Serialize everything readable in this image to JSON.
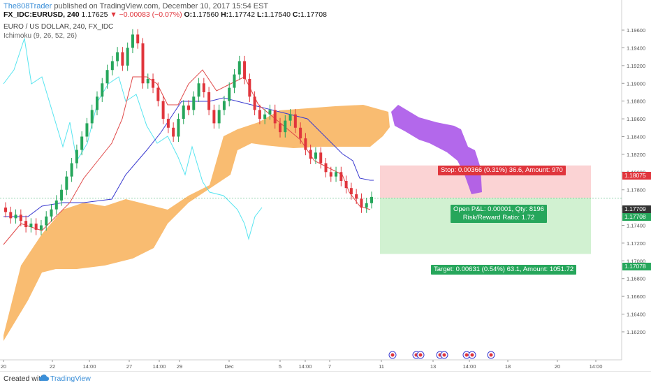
{
  "header": {
    "author": "The808Trader",
    "published": "published on TradingView.com, December 10, 2017 15:54 EST",
    "symbol": "FX_IDC:EURUSD, 240",
    "last": "1.17625",
    "change_arrow": "▼",
    "change": "−0.00083 (−0.07%)",
    "o_label": "O:",
    "o_value": "1.17560",
    "h_label": "H:",
    "h_value": "1.17742",
    "l_label": "L:",
    "l_value": "1.17540",
    "c_label": "C:",
    "c_value": "1.17708"
  },
  "legend": {
    "title": "EURO / US DOLLAR, 240, FX_IDC",
    "indicator": "Ichimoku (9, 26, 52, 26)"
  },
  "chart_data": {
    "type": "candlestick",
    "price_axis": [
      "1.19600",
      "1.19400",
      "1.19200",
      "1.19000",
      "1.18800",
      "1.18600",
      "1.18400",
      "1.18200",
      "1.18000",
      "1.17800",
      "1.17600",
      "1.17400",
      "1.17200",
      "1.17000",
      "1.16800",
      "1.16600",
      "1.16400",
      "1.16200"
    ],
    "time_axis": [
      "20",
      "22",
      "14:00",
      "27",
      "14:00",
      "29",
      "Dec",
      "5",
      "14:00",
      "7",
      "11",
      "13",
      "14:00",
      "18",
      "20",
      "14:00"
    ],
    "ylim": [
      1.1605,
      1.1975
    ],
    "price_markers": {
      "stop": "1.18075",
      "current_a": "1.17709",
      "current_b": "1.17708",
      "target": "1.17078"
    },
    "position": {
      "stop_label": "Stop: 0.00366 (0.31%) 36.6, Amount: 970",
      "pnl_label": "Open P&L: 0.00001, Qty: 8196",
      "rr_label": "Risk/Reward Ratio: 1.72",
      "target_label": "Target: 0.00631 (0.54%) 63.1, Amount: 1051.72",
      "entry": 1.17709,
      "stop": 1.18075,
      "target": 1.17078
    },
    "colors": {
      "up": "#26a65b",
      "down": "#e0353c",
      "cloud_bull": "#f7a541",
      "cloud_bear": "#a64ee8",
      "tenkan": "#e04a4a",
      "kijun": "#3a3ad0",
      "chikou": "#58e5f0",
      "stop_zone": "#f9c4c6",
      "target_zone": "#c9eec9"
    }
  },
  "footer": {
    "created": "Created with",
    "brand": "TradingView"
  }
}
